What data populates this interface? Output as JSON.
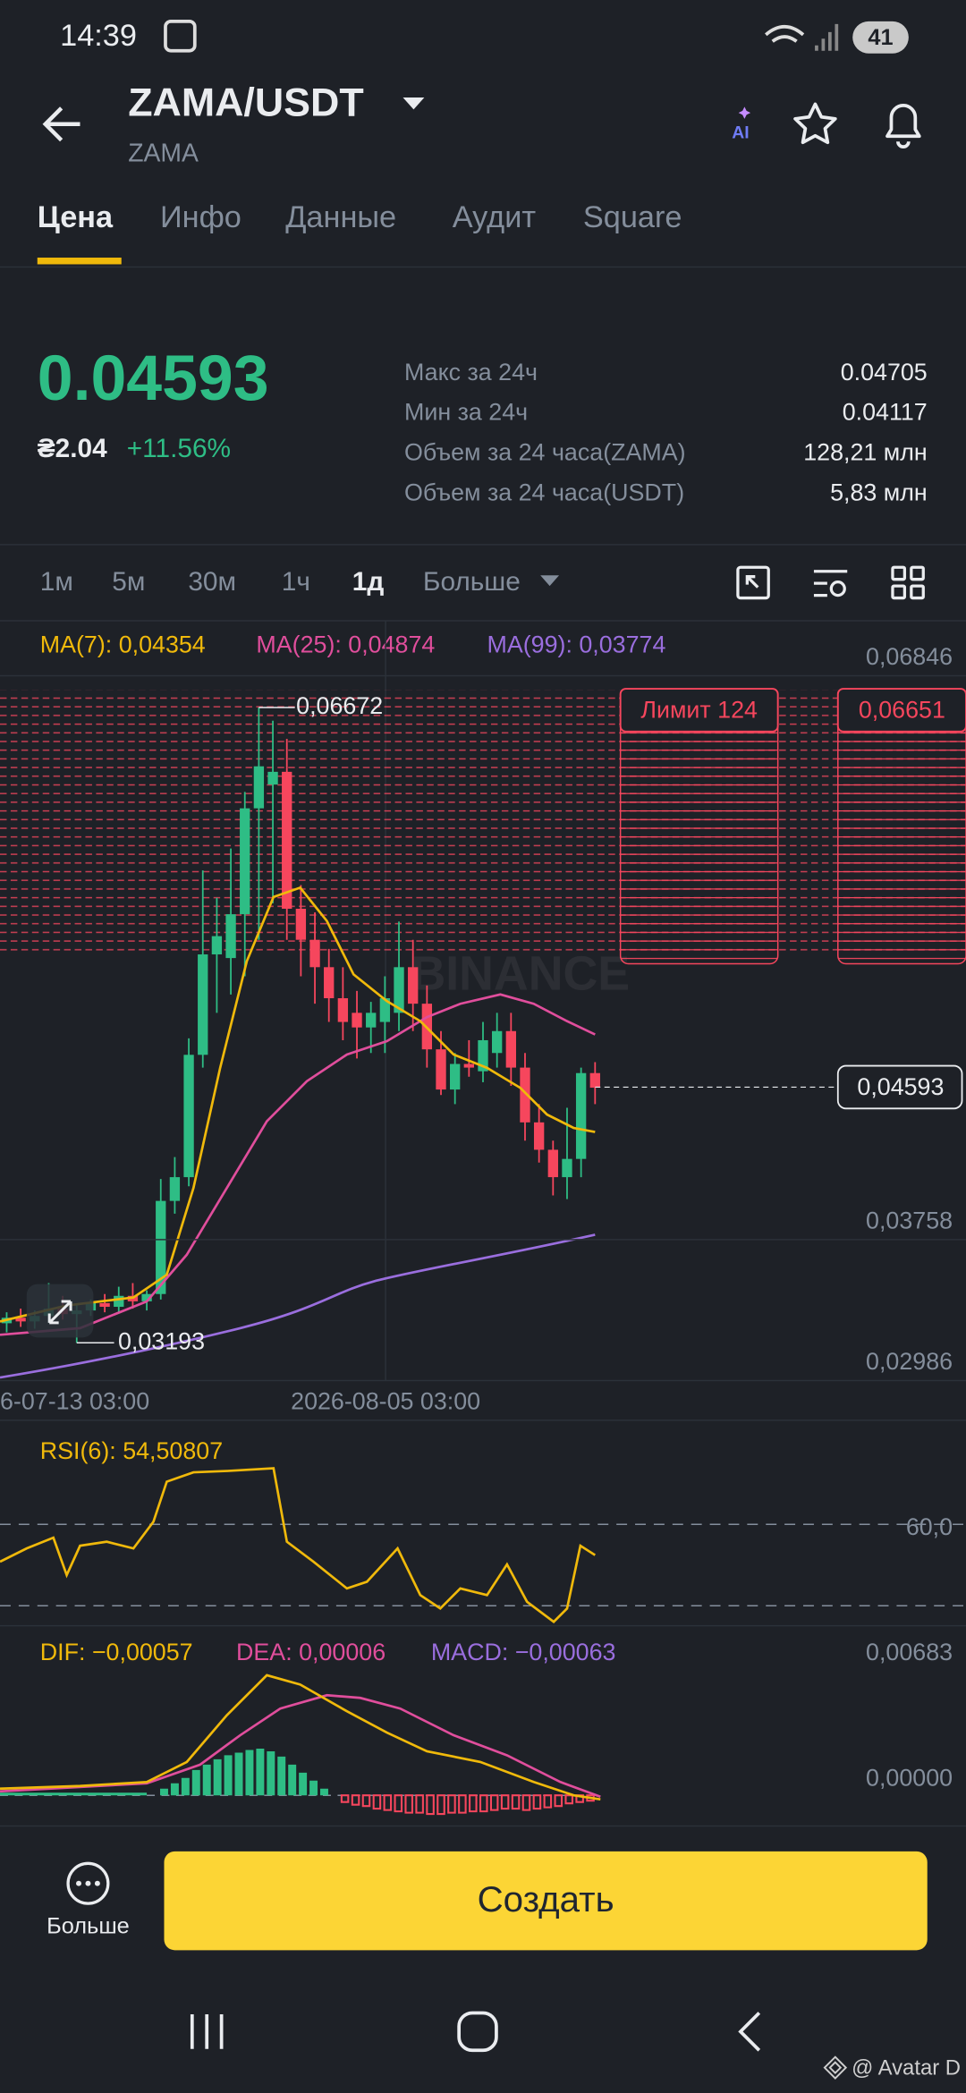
{
  "status": {
    "time": "14:39",
    "battery": "41"
  },
  "header": {
    "pair": "ZAMA/USDT",
    "base": "ZAMA",
    "ai": "AI"
  },
  "tabs": [
    "Цена",
    "Инфо",
    "Данные",
    "Аудит",
    "Square"
  ],
  "price": {
    "last": "0.04593",
    "fiat": "₴2.04",
    "change": "+11.56%"
  },
  "stats": [
    [
      "Макс за 24ч",
      "0.04705"
    ],
    [
      "Мин за 24ч",
      "0.04117"
    ],
    [
      "Объем за 24 часа(ZAMA)",
      "128,21 млн"
    ],
    [
      "Объем за 24 часа(USDT)",
      "5,83 млн"
    ]
  ],
  "intervals": [
    "1м",
    "5м",
    "30м",
    "1ч",
    "1д",
    "Больше"
  ],
  "chart": {
    "ma": [
      "MA(7): 0,04354",
      "MA(25): 0,04874",
      "MA(99): 0,03774"
    ],
    "watermark": "BINANCE",
    "ylim": [
      0.02988,
      0.07111
    ],
    "yticks": [
      {
        "value": 0.06846,
        "label": "0,06846"
      },
      {
        "value": 0.03758,
        "label": "0,03758"
      },
      {
        "value": 0.02986,
        "label": "0,02986"
      }
    ],
    "dates": [
      "6-07-13 03:00",
      "2026-08-05 03:00"
    ],
    "high": {
      "value": 0.06672,
      "label": "0,06672"
    },
    "low": {
      "value": 0.03193,
      "label": "0,03193"
    },
    "last": {
      "value": 0.04593,
      "label": "0,04593"
    },
    "limit": {
      "label": "Лимит 124",
      "price": "0,06651"
    },
    "candles": [
      [
        0.033,
        0.0336,
        0.0325,
        0.0333
      ],
      [
        0.0333,
        0.0338,
        0.0328,
        0.0331
      ],
      [
        0.0331,
        0.0337,
        0.0327,
        0.0334
      ],
      [
        0.0334,
        0.0352,
        0.033,
        0.0338
      ],
      [
        0.0338,
        0.0345,
        0.0332,
        0.0335
      ],
      [
        0.0335,
        0.034,
        0.03193,
        0.0337
      ],
      [
        0.0337,
        0.0343,
        0.0334,
        0.0341
      ],
      [
        0.0341,
        0.0346,
        0.0336,
        0.0339
      ],
      [
        0.0339,
        0.035,
        0.0336,
        0.0345
      ],
      [
        0.0345,
        0.0352,
        0.0338,
        0.0342
      ],
      [
        0.0342,
        0.0348,
        0.0337,
        0.0346
      ],
      [
        0.0346,
        0.0409,
        0.0343,
        0.0397
      ],
      [
        0.0397,
        0.0421,
        0.039,
        0.041
      ],
      [
        0.041,
        0.0486,
        0.0405,
        0.0477
      ],
      [
        0.0477,
        0.0578,
        0.047,
        0.0532
      ],
      [
        0.0532,
        0.0563,
        0.05,
        0.0542
      ],
      [
        0.053,
        0.059,
        0.051,
        0.0554
      ],
      [
        0.0554,
        0.0621,
        0.052,
        0.0612
      ],
      [
        0.0612,
        0.06672,
        0.054,
        0.0635
      ],
      [
        0.0625,
        0.066,
        0.056,
        0.0632
      ],
      [
        0.0632,
        0.065,
        0.054,
        0.0557
      ],
      [
        0.0557,
        0.057,
        0.052,
        0.054
      ],
      [
        0.054,
        0.0555,
        0.0505,
        0.0525
      ],
      [
        0.0525,
        0.0535,
        0.0495,
        0.0508
      ],
      [
        0.0508,
        0.0525,
        0.0485,
        0.0495
      ],
      [
        0.05,
        0.0512,
        0.0475,
        0.0492
      ],
      [
        0.0492,
        0.0506,
        0.0478,
        0.05
      ],
      [
        0.0495,
        0.052,
        0.0478,
        0.0508
      ],
      [
        0.05,
        0.055,
        0.049,
        0.0525
      ],
      [
        0.0525,
        0.054,
        0.049,
        0.0505
      ],
      [
        0.0505,
        0.0515,
        0.047,
        0.048
      ],
      [
        0.048,
        0.049,
        0.0455,
        0.0458
      ],
      [
        0.0458,
        0.0478,
        0.045,
        0.0472
      ],
      [
        0.0472,
        0.0485,
        0.0465,
        0.047
      ],
      [
        0.0468,
        0.0495,
        0.0462,
        0.0485
      ],
      [
        0.0478,
        0.05,
        0.047,
        0.049
      ],
      [
        0.049,
        0.05,
        0.046,
        0.047
      ],
      [
        0.047,
        0.0478,
        0.043,
        0.044
      ],
      [
        0.044,
        0.045,
        0.0418,
        0.0425
      ],
      [
        0.0425,
        0.043,
        0.04,
        0.041
      ],
      [
        0.041,
        0.0448,
        0.0398,
        0.042
      ],
      [
        0.042,
        0.047,
        0.041,
        0.0467
      ],
      [
        0.0467,
        0.0473,
        0.045,
        0.0459
      ]
    ]
  },
  "rsi": {
    "label": "RSI(6): 54,50807",
    "level": "60,0"
  },
  "macd": {
    "dif": "DIF: −0,00057",
    "dea": "DEA: 0,00006",
    "macd": "MACD: −0,00063",
    "ticks": [
      "0,00683",
      "0,00000"
    ]
  },
  "footer": {
    "more": "Больше",
    "create": "Создать",
    "credit": "@ Avatar D"
  }
}
